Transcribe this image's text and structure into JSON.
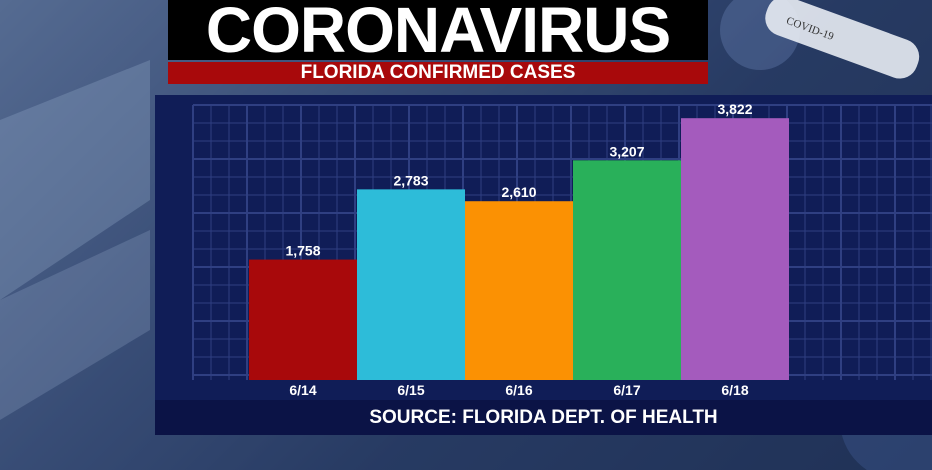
{
  "title": "CORONAVIRUS",
  "subtitle": "FLORIDA CONFIRMED CASES",
  "source": "SOURCE: FLORIDA DEPT. OF HEALTH",
  "tube_label": "COVID-19",
  "colors": {
    "background": "#2b3f66",
    "panel": "#101d57",
    "grid": "#2f3f82",
    "subtitle_bar": "#a8090b"
  },
  "chart_data": {
    "type": "bar",
    "title": "FLORIDA CONFIRMED CASES",
    "categories": [
      "6/14",
      "6/15",
      "6/16",
      "6/17",
      "6/18"
    ],
    "values": [
      1758,
      2783,
      2610,
      3207,
      3822
    ],
    "value_labels": [
      "1,758",
      "2,783",
      "2,610",
      "3,207",
      "3,822"
    ],
    "colors": [
      "#a8090b",
      "#2dbcd9",
      "#fb9103",
      "#29b05a",
      "#a45bbd"
    ],
    "xlabel": "",
    "ylabel": "",
    "ylim": [
      0,
      4000
    ],
    "grid": true,
    "legend": "none"
  }
}
